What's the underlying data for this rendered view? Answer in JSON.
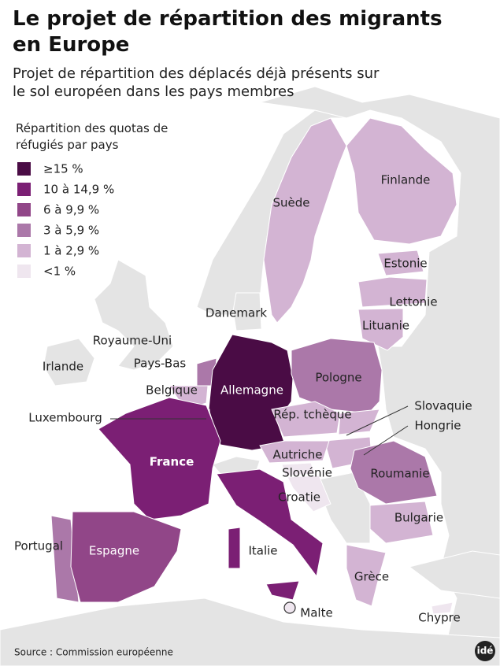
{
  "header": {
    "title": "Le projet de répartition des migrants en Europe",
    "subtitle": "Projet de répartition des déplacés déjà présents sur le sol européen dans les pays membres"
  },
  "legend": {
    "title": "Répartition des quotas de réfugiés par pays",
    "items": [
      {
        "label": "≥15 %",
        "color": "#4a0c45"
      },
      {
        "label": "10 à 14,9 %",
        "color": "#7b1f74"
      },
      {
        "label": "6 à 9,9 %",
        "color": "#914688"
      },
      {
        "label": "3 à 5,9 %",
        "color": "#ab78a9"
      },
      {
        "label": "1 à 2,9 %",
        "color": "#d3b4d3"
      },
      {
        "label": "<1 %",
        "color": "#efe6ef"
      }
    ]
  },
  "countries": [
    {
      "name": "Suède",
      "color": "#d3b4d3"
    },
    {
      "name": "Finlande",
      "color": "#d3b4d3"
    },
    {
      "name": "Estonie",
      "color": "#d3b4d3"
    },
    {
      "name": "Lettonie",
      "color": "#d3b4d3"
    },
    {
      "name": "Lituanie",
      "color": "#d3b4d3"
    },
    {
      "name": "Danemark",
      "color": "#e4e4e4"
    },
    {
      "name": "Royaume-Uni"
    },
    {
      "name": "Irlande"
    },
    {
      "name": "Pays-Bas",
      "color": "#ab78a9"
    },
    {
      "name": "Belgique",
      "color": "#d3b4d3"
    },
    {
      "name": "Allemagne",
      "color": "#4a0c45"
    },
    {
      "name": "Luxembourg",
      "color": "#efe6ef"
    },
    {
      "name": "Pologne",
      "color": "#ab78a9"
    },
    {
      "name": "Rép. tchèque",
      "color": "#d3b4d3"
    },
    {
      "name": "Slovaquie",
      "color": "#d3b4d3"
    },
    {
      "name": "Hongrie",
      "color": "#d3b4d3"
    },
    {
      "name": "Autriche",
      "color": "#d3b4d3"
    },
    {
      "name": "Slovénie",
      "color": "#efe6ef"
    },
    {
      "name": "Croatie",
      "color": "#efe6ef"
    },
    {
      "name": "France",
      "color": "#7b1f74"
    },
    {
      "name": "Roumanie",
      "color": "#ab78a9"
    },
    {
      "name": "Bulgarie",
      "color": "#d3b4d3"
    },
    {
      "name": "Portugal",
      "color": "#ab78a9"
    },
    {
      "name": "Espagne",
      "color": "#914688"
    },
    {
      "name": "Italie",
      "color": "#7b1f74"
    },
    {
      "name": "Grèce",
      "color": "#d3b4d3"
    },
    {
      "name": "Malte",
      "color": "#efe6ef"
    },
    {
      "name": "Chypre",
      "color": "#efe6ef"
    }
  ],
  "source": "Source : Commission européenne",
  "logo": "idé"
}
